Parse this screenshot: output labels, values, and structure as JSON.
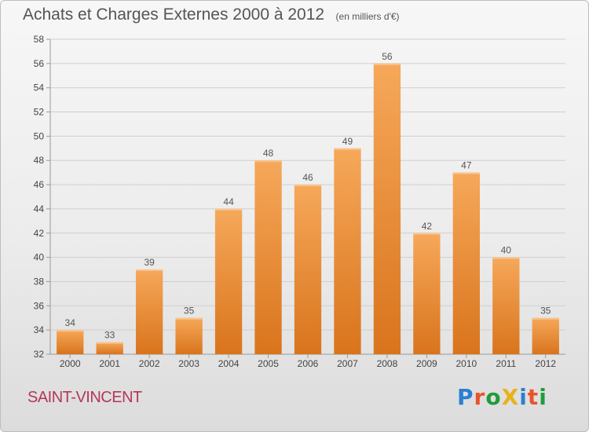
{
  "title": {
    "main": "Achats et Charges Externes 2000 à 2012",
    "unit": "(en milliers d'€)"
  },
  "place": "SAINT-VINCENT",
  "logo": {
    "text": "ProXiti",
    "letter_colors": [
      "#2a7fd4",
      "#e8532a",
      "#1f9b3a",
      "#e8b21a",
      "#2a7fd4",
      "#e8532a",
      "#1f9b3a"
    ]
  },
  "colors": {
    "bar_top": "#f6a85a",
    "bar_bottom": "#d9741c",
    "grid": "#cfcfcf",
    "title": "#555555",
    "place": "#b5365a"
  },
  "chart_data": {
    "type": "bar",
    "title": "Achats et Charges Externes 2000 à 2012",
    "subtitle": "(en milliers d'€)",
    "categories": [
      "2000",
      "2001",
      "2002",
      "2003",
      "2004",
      "2005",
      "2006",
      "2007",
      "2008",
      "2009",
      "2010",
      "2011",
      "2012"
    ],
    "values": [
      34,
      33,
      39,
      35,
      44,
      48,
      46,
      49,
      56,
      42,
      47,
      40,
      35
    ],
    "ylim": [
      32,
      58
    ],
    "yticks": [
      32,
      34,
      36,
      38,
      40,
      42,
      44,
      46,
      48,
      50,
      52,
      54,
      56,
      58
    ],
    "grid": true,
    "legend": "none"
  }
}
